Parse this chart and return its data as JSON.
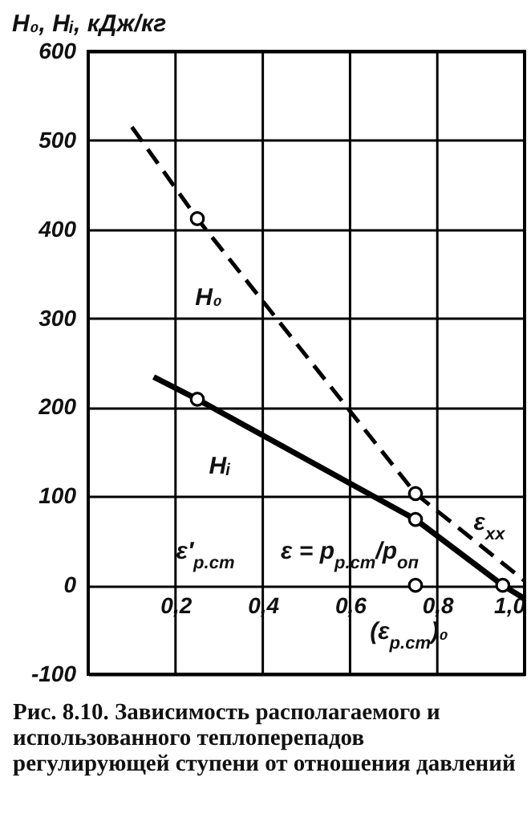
{
  "chart_data": {
    "type": "line",
    "ylabel": "H₀, Hᵢ, кДж/кг",
    "xlim": [
      0,
      1.0
    ],
    "xticks": [
      {
        "value": 0.2,
        "label": "0,2"
      },
      {
        "value": 0.4,
        "label": "0,4"
      },
      {
        "value": 0.6,
        "label": "0,6"
      },
      {
        "value": 0.8,
        "label": "0,8"
      },
      {
        "value": 1.0,
        "label": "1,0"
      }
    ],
    "ylim": [
      -100,
      600
    ],
    "yticks": [
      -100,
      0,
      100,
      200,
      300,
      400,
      500,
      600
    ],
    "grid": true,
    "series": [
      {
        "type": "line",
        "color": "#000000",
        "line_style": "dashed",
        "x": [
          0.1,
          0.25,
          0.75,
          1.0
        ],
        "values": [
          515,
          412,
          103,
          5
        ]
      },
      {
        "type": "line",
        "color": "#000000",
        "line_style": "solid",
        "x": [
          0.15,
          0.25,
          0.75,
          0.95,
          1.0
        ],
        "values": [
          234,
          209,
          74,
          0,
          -15
        ]
      },
      {
        "type": "scatter",
        "color": "#000000",
        "marker": "circle",
        "x": [
          0.25,
          0.75,
          0.25,
          0.75,
          0.75,
          0.95
        ],
        "values": [
          412,
          103,
          209,
          74,
          0,
          0
        ]
      }
    ],
    "annotations": [
      "H₀",
      "Hᵢ",
      "ε′$_{р.ст}$",
      "ε = p$_{р.ст}$/p$_{оп}$",
      "(ε$_{р.ст}$)₀",
      "ε$_{хх}$",
      "Рис. 8.10. Зависимость располагаемого и использованного теплоперепадов регулирующей ступени от отношения давлений"
    ]
  }
}
